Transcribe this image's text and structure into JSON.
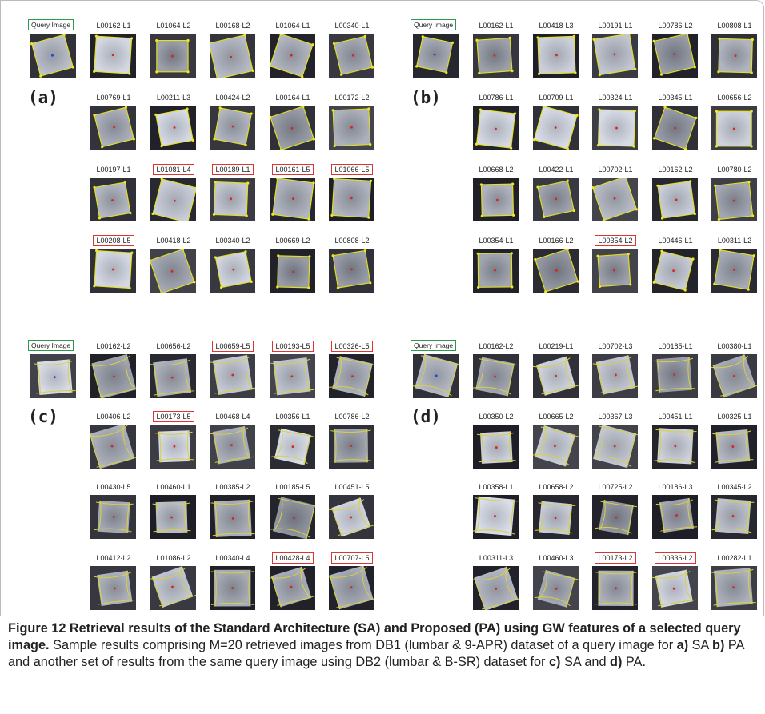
{
  "panels": [
    {
      "query_label": "Query Image",
      "letter": "(a)",
      "rows": [
        [
          {
            "label": "L00162-L1",
            "highlighted": false
          },
          {
            "label": "L01064-L2",
            "highlighted": false
          },
          {
            "label": "L00168-L2",
            "highlighted": false
          },
          {
            "label": "L01064-L1",
            "highlighted": false
          },
          {
            "label": "L00340-L1",
            "highlighted": false
          }
        ],
        [
          {
            "label": "L00769-L1",
            "highlighted": false
          },
          {
            "label": "L00211-L3",
            "highlighted": false
          },
          {
            "label": "L00424-L2",
            "highlighted": false
          },
          {
            "label": "L00164-L1",
            "highlighted": false
          },
          {
            "label": "L00172-L2",
            "highlighted": false
          }
        ],
        [
          {
            "label": "L00197-L1",
            "highlighted": false
          },
          {
            "label": "L01081-L4",
            "highlighted": true
          },
          {
            "label": "L00189-L1",
            "highlighted": true
          },
          {
            "label": "L00161-L5",
            "highlighted": true
          },
          {
            "label": "L01066-L5",
            "highlighted": true
          }
        ],
        [
          {
            "label": "L00208-L5",
            "highlighted": true
          },
          {
            "label": "L00418-L2",
            "highlighted": false
          },
          {
            "label": "L00340-L2",
            "highlighted": false
          },
          {
            "label": "L00669-L2",
            "highlighted": false
          },
          {
            "label": "L00808-L2",
            "highlighted": false
          }
        ]
      ]
    },
    {
      "query_label": "Query Image",
      "letter": "(b)",
      "rows": [
        [
          {
            "label": "L00162-L1",
            "highlighted": false
          },
          {
            "label": "L00418-L3",
            "highlighted": false
          },
          {
            "label": "L00191-L1",
            "highlighted": false
          },
          {
            "label": "L00786-L2",
            "highlighted": false
          },
          {
            "label": "L00808-L1",
            "highlighted": false
          }
        ],
        [
          {
            "label": "L00786-L1",
            "highlighted": false
          },
          {
            "label": "L00709-L1",
            "highlighted": false
          },
          {
            "label": "L00324-L1",
            "highlighted": false
          },
          {
            "label": "L00345-L1",
            "highlighted": false
          },
          {
            "label": "L00656-L2",
            "highlighted": false
          }
        ],
        [
          {
            "label": "L00668-L2",
            "highlighted": false
          },
          {
            "label": "L00422-L1",
            "highlighted": false
          },
          {
            "label": "L00702-L1",
            "highlighted": false
          },
          {
            "label": "L00162-L2",
            "highlighted": false
          },
          {
            "label": "L00780-L2",
            "highlighted": false
          }
        ],
        [
          {
            "label": "L00354-L1",
            "highlighted": false
          },
          {
            "label": "L00166-L2",
            "highlighted": false
          },
          {
            "label": "L00354-L2",
            "highlighted": true
          },
          {
            "label": "L00446-L1",
            "highlighted": false
          },
          {
            "label": "L00311-L2",
            "highlighted": false
          }
        ]
      ]
    },
    {
      "query_label": "Query Image",
      "letter": "(c)",
      "rows": [
        [
          {
            "label": "L00162-L2",
            "highlighted": false
          },
          {
            "label": "L00656-L2",
            "highlighted": false
          },
          {
            "label": "L00659-L5",
            "highlighted": true
          },
          {
            "label": "L00193-L5",
            "highlighted": true
          },
          {
            "label": "L00326-L5",
            "highlighted": true
          }
        ],
        [
          {
            "label": "L00406-L2",
            "highlighted": false
          },
          {
            "label": "L00173-L5",
            "highlighted": true
          },
          {
            "label": "L00468-L4",
            "highlighted": false
          },
          {
            "label": "L00356-L1",
            "highlighted": false
          },
          {
            "label": "L00786-L2",
            "highlighted": false
          }
        ],
        [
          {
            "label": "L00430-L5",
            "highlighted": false
          },
          {
            "label": "L00460-L1",
            "highlighted": false
          },
          {
            "label": "L00385-L2",
            "highlighted": false
          },
          {
            "label": "L00185-L5",
            "highlighted": false
          },
          {
            "label": "L00451-L5",
            "highlighted": false
          }
        ],
        [
          {
            "label": "L00412-L2",
            "highlighted": false
          },
          {
            "label": "L01086-L2",
            "highlighted": false
          },
          {
            "label": "L00340-L4",
            "highlighted": false
          },
          {
            "label": "L00428-L4",
            "highlighted": true
          },
          {
            "label": "L00707-L5",
            "highlighted": true
          }
        ]
      ]
    },
    {
      "query_label": "Query Image",
      "letter": "(d)",
      "rows": [
        [
          {
            "label": "L00162-L2",
            "highlighted": false
          },
          {
            "label": "L00219-L1",
            "highlighted": false
          },
          {
            "label": "L00702-L3",
            "highlighted": false
          },
          {
            "label": "L00185-L1",
            "highlighted": false
          },
          {
            "label": "L00380-L1",
            "highlighted": false
          }
        ],
        [
          {
            "label": "L00350-L2",
            "highlighted": false
          },
          {
            "label": "L00665-L2",
            "highlighted": false
          },
          {
            "label": "L00367-L3",
            "highlighted": false
          },
          {
            "label": "L00451-L1",
            "highlighted": false
          },
          {
            "label": "L00325-L1",
            "highlighted": false
          }
        ],
        [
          {
            "label": "L00358-L1",
            "highlighted": false
          },
          {
            "label": "L00658-L2",
            "highlighted": false
          },
          {
            "label": "L00725-L2",
            "highlighted": false
          },
          {
            "label": "L00186-L3",
            "highlighted": false
          },
          {
            "label": "L00345-L2",
            "highlighted": false
          }
        ],
        [
          {
            "label": "L00311-L3",
            "highlighted": false
          },
          {
            "label": "L00460-L3",
            "highlighted": false
          },
          {
            "label": "L00173-L2",
            "highlighted": true
          },
          {
            "label": "L00336-L2",
            "highlighted": true
          },
          {
            "label": "L00282-L1",
            "highlighted": false
          }
        ]
      ]
    }
  ],
  "caption": {
    "title": "Figure 12 Retrieval results of the Standard Architecture (SA) and Proposed (PA) using GW features of a selected query image.",
    "segments": [
      {
        "text": " Sample results comprising M=20 retrieved images from DB1 (lumbar & 9-APR) dataset of a query image for ",
        "bold": false
      },
      {
        "text": "a)",
        "bold": true
      },
      {
        "text": " SA ",
        "bold": false
      },
      {
        "text": "b)",
        "bold": true
      },
      {
        "text": " PA and another set of results from the same query image using DB2 (lumbar & B-SR) dataset for ",
        "bold": false
      },
      {
        "text": "c)",
        "bold": true
      },
      {
        "text": " SA and ",
        "bold": false
      },
      {
        "text": "d)",
        "bold": true
      },
      {
        "text": " PA.",
        "bold": false
      }
    ]
  }
}
